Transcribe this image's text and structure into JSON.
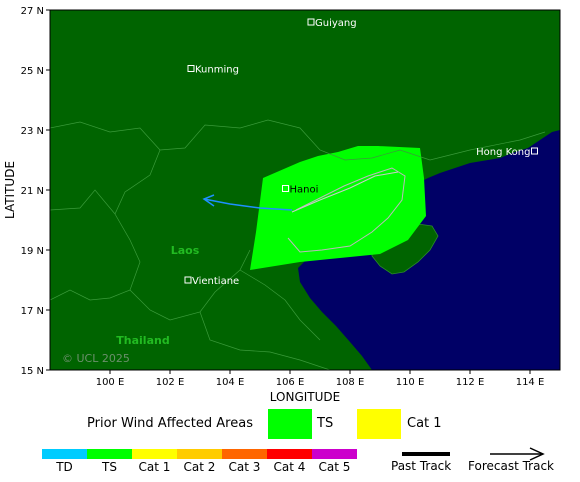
{
  "map": {
    "lat_labels": [
      "27 N",
      "25 N",
      "23 N",
      "21 N",
      "19 N",
      "17 N",
      "15 N"
    ],
    "lon_labels": [
      "100 E",
      "102 E",
      "104 E",
      "106 E",
      "108 E",
      "110 E",
      "112 E",
      "114 E"
    ],
    "xlabel": "LONGITUDE",
    "ylabel": "LATITUDE",
    "copyright": "© UCL 2025",
    "cities": [
      {
        "name": "Guiyang",
        "lon": 106.7,
        "lat": 26.6
      },
      {
        "name": "Kunming",
        "lon": 102.7,
        "lat": 25.05
      },
      {
        "name": "Hanoi",
        "lon": 105.85,
        "lat": 21.05
      },
      {
        "name": "Hong Kong",
        "lon": 114.15,
        "lat": 22.3
      },
      {
        "name": "Vientiane",
        "lon": 102.6,
        "lat": 18.0
      }
    ],
    "countries": [
      {
        "name": "Laos",
        "lon": 102.5,
        "lat": 19.0
      },
      {
        "name": "Thailand",
        "lon": 101.1,
        "lat": 16.0
      }
    ],
    "lon_range": [
      98,
      115
    ],
    "lat_range": [
      15,
      27
    ],
    "colors": {
      "land": "#006400",
      "sea": "#000066",
      "ts": "#00ff00",
      "cat1": "#ffff00",
      "track": "#1e90ff"
    }
  },
  "legend": {
    "prior_wind_label": "Prior Wind Affected Areas",
    "ts_label": "TS",
    "cat1_label": "Cat 1",
    "categories": [
      {
        "label": "TD",
        "color": "#00ccff"
      },
      {
        "label": "TS",
        "color": "#00ff00"
      },
      {
        "label": "Cat 1",
        "color": "#ffff00"
      },
      {
        "label": "Cat 2",
        "color": "#ffcc00"
      },
      {
        "label": "Cat 3",
        "color": "#ff6600"
      },
      {
        "label": "Cat 4",
        "color": "#ff0000"
      },
      {
        "label": "Cat 5",
        "color": "#cc00cc"
      }
    ],
    "past_track_label": "Past Track",
    "forecast_track_label": "Forecast Track"
  }
}
